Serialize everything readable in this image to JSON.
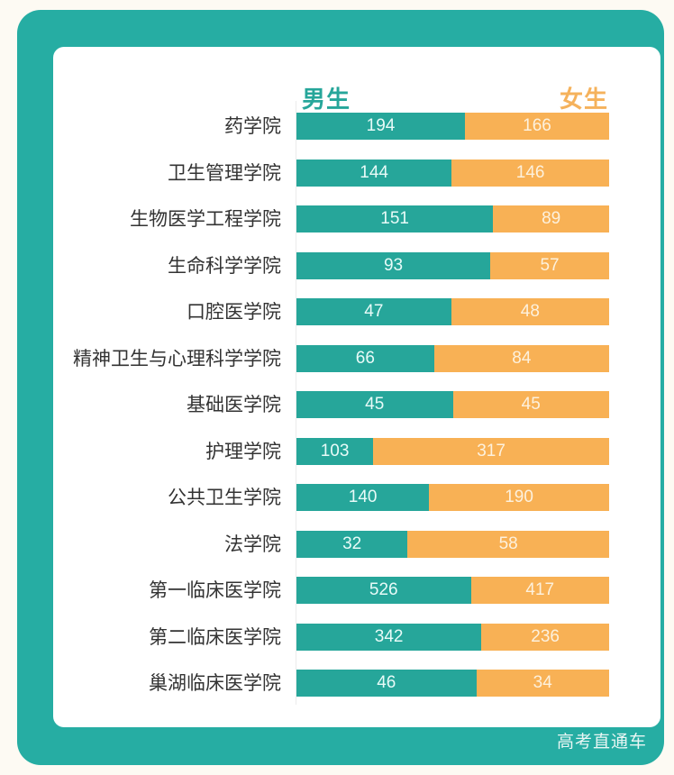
{
  "legend": {
    "male": "男生",
    "female": "女生"
  },
  "colors": {
    "male": "#26a69a",
    "female": "#f8b155",
    "frame": "#26ada3"
  },
  "watermark": "高考直通车",
  "chart_data": {
    "type": "bar",
    "orientation": "horizontal-stacked-100",
    "title": "",
    "xlabel": "",
    "ylabel": "",
    "legend": [
      "男生",
      "女生"
    ],
    "legend_position": "top",
    "grid": false,
    "categories": [
      "药学院",
      "卫生管理学院",
      "生物医学工程学院",
      "生命科学学院",
      "口腔医学院",
      "精神卫生与心理科学学院",
      "基础医学院",
      "护理学院",
      "公共卫生学院",
      "法学院",
      "第一临床医学院",
      "第二临床医学院",
      "巢湖临床医学院"
    ],
    "series": [
      {
        "name": "男生",
        "values": [
          194,
          144,
          151,
          93,
          47,
          66,
          45,
          103,
          140,
          32,
          526,
          342,
          46
        ]
      },
      {
        "name": "女生",
        "values": [
          166,
          146,
          89,
          57,
          48,
          84,
          45,
          317,
          190,
          58,
          417,
          236,
          34
        ]
      }
    ]
  },
  "rows": [
    {
      "label": "药学院",
      "male": "194",
      "female": "166",
      "mv": 194,
      "fv": 166
    },
    {
      "label": "卫生管理学院",
      "male": "144",
      "female": "146",
      "mv": 144,
      "fv": 146
    },
    {
      "label": "生物医学工程学院",
      "male": "151",
      "female": "89",
      "mv": 151,
      "fv": 89
    },
    {
      "label": "生命科学学院",
      "male": "93",
      "female": "57",
      "mv": 93,
      "fv": 57
    },
    {
      "label": "口腔医学院",
      "male": "47",
      "female": "48",
      "mv": 47,
      "fv": 48
    },
    {
      "label": "精神卫生与心理科学学院",
      "male": "66",
      "female": "84",
      "mv": 66,
      "fv": 84
    },
    {
      "label": "基础医学院",
      "male": "45",
      "female": "45",
      "mv": 45,
      "fv": 45
    },
    {
      "label": "护理学院",
      "male": "103",
      "female": "317",
      "mv": 103,
      "fv": 317
    },
    {
      "label": "公共卫生学院",
      "male": "140",
      "female": "190",
      "mv": 140,
      "fv": 190
    },
    {
      "label": "法学院",
      "male": "32",
      "female": "58",
      "mv": 32,
      "fv": 58
    },
    {
      "label": "第一临床医学院",
      "male": "526",
      "female": "417",
      "mv": 526,
      "fv": 417
    },
    {
      "label": "第二临床医学院",
      "male": "342",
      "female": "236",
      "mv": 342,
      "fv": 236
    },
    {
      "label": "巢湖临床医学院",
      "male": "46",
      "female": "34",
      "mv": 46,
      "fv": 34
    }
  ]
}
